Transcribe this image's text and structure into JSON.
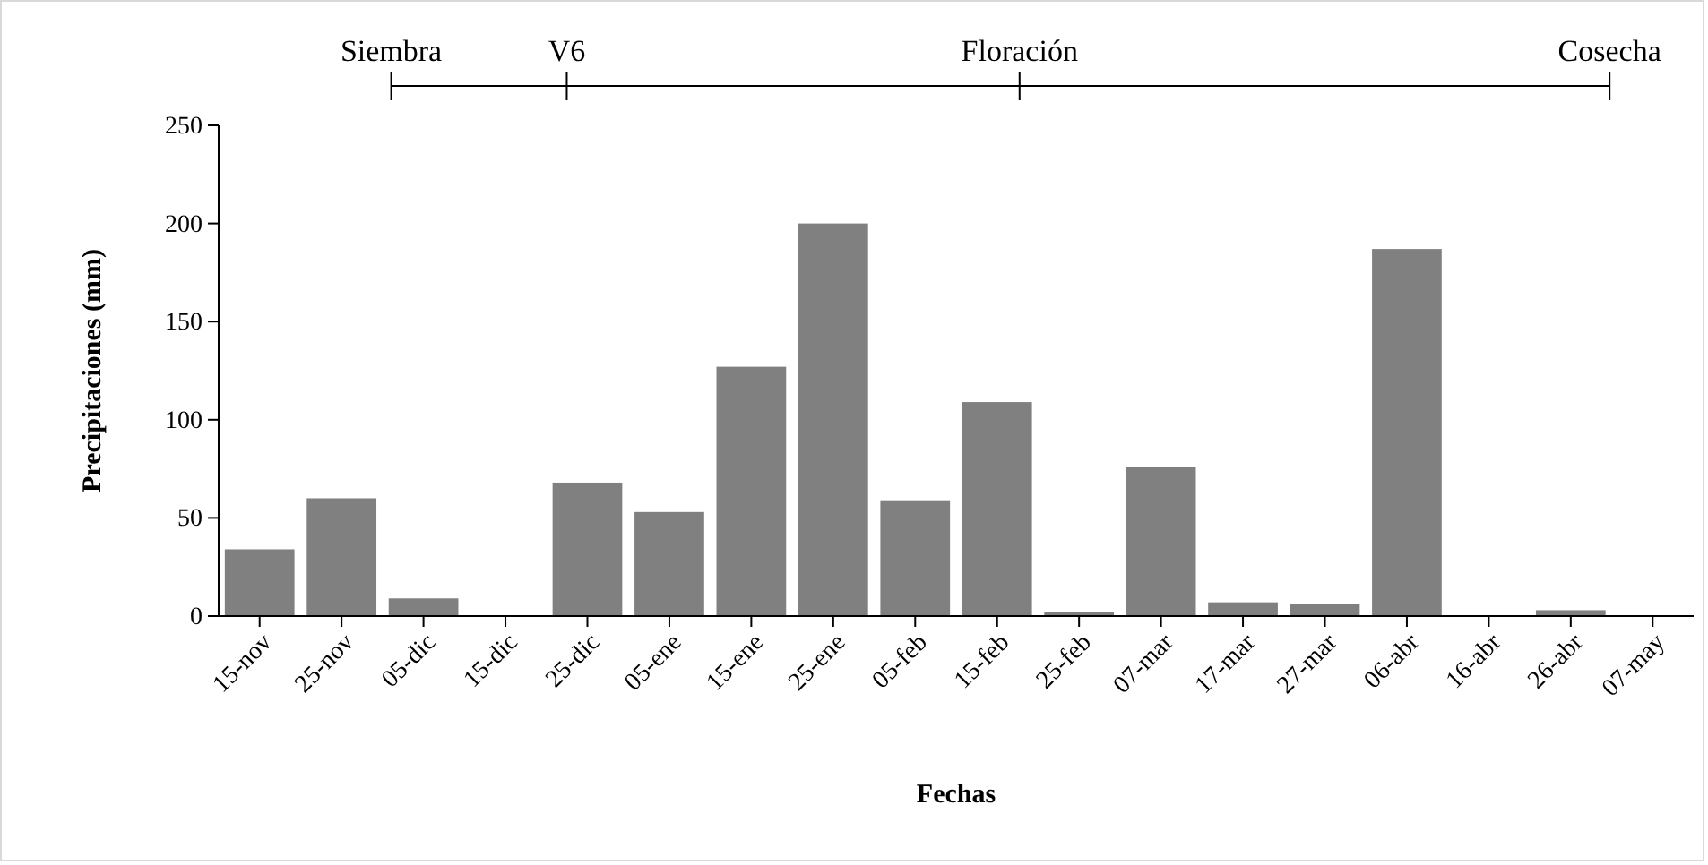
{
  "chart_data": {
    "type": "bar",
    "xlabel": "Fechas",
    "ylabel": "Precipitaciones (mm)",
    "categories": [
      "15-nov",
      "25-nov",
      "05-dic",
      "15-dic",
      "25-dic",
      "05-ene",
      "15-ene",
      "25-ene",
      "05-feb",
      "15-feb",
      "25-feb",
      "07-mar",
      "17-mar",
      "27-mar",
      "06-abr",
      "16-abr",
      "26-abr",
      "07-may"
    ],
    "values": [
      34,
      60,
      9,
      0,
      68,
      53,
      127,
      200,
      59,
      109,
      2,
      76,
      7,
      6,
      187,
      0,
      3,
      0
    ],
    "color": "#808080",
    "ylim": [
      0,
      250
    ],
    "yticks": [
      0,
      50,
      100,
      150,
      200,
      250
    ],
    "grid": false,
    "annotations": [
      "Siembra",
      "V6",
      "Floración",
      "Cosecha"
    ]
  }
}
